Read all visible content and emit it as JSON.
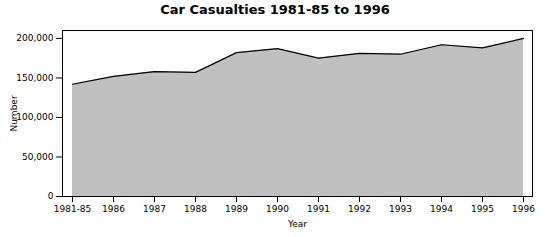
{
  "chart_data": {
    "type": "area",
    "title": "Car Casualties 1981-85 to 1996",
    "xlabel": "Year",
    "ylabel": "Number",
    "categories": [
      "1981-85",
      "1986",
      "1987",
      "1988",
      "1989",
      "1990",
      "1991",
      "1992",
      "1993",
      "1994",
      "1995",
      "1996"
    ],
    "values": [
      142000,
      152000,
      158000,
      157000,
      182000,
      187000,
      175000,
      181000,
      180000,
      192000,
      188000,
      200000
    ],
    "color": "#c0c0c0",
    "ylim": [
      0,
      210000
    ],
    "yticks": [
      0,
      {
        "value": 50000,
        "label": "50,000"
      },
      {
        "value": 100000,
        "label": "100,000"
      },
      {
        "value": 150000,
        "label": "150,000"
      },
      {
        "value": 200000,
        "label": "200,000"
      }
    ],
    "grid": false
  }
}
